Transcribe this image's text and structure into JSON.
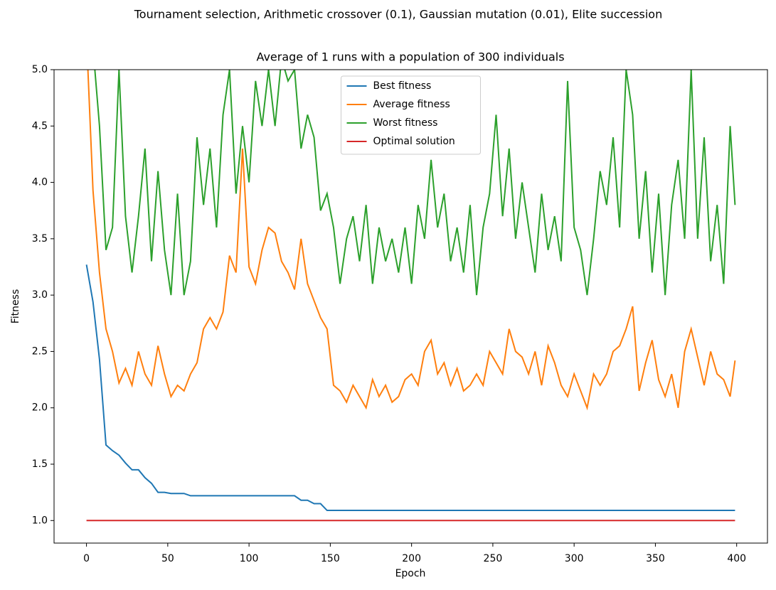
{
  "chart_data": {
    "type": "line",
    "title": "Tournament selection, Arithmetic crossover (0.1), Gaussian mutation (0.01), Elite succession",
    "subtitle": "Average of 1 runs with a population of 300 individuals",
    "x_label": "Epoch",
    "y_label": "Fitness",
    "x": [
      0,
      4,
      8,
      12,
      16,
      20,
      24,
      28,
      32,
      36,
      40,
      44,
      48,
      52,
      56,
      60,
      64,
      68,
      72,
      76,
      80,
      84,
      88,
      92,
      96,
      100,
      104,
      108,
      112,
      116,
      120,
      124,
      128,
      132,
      136,
      140,
      144,
      148,
      152,
      156,
      160,
      164,
      168,
      172,
      176,
      180,
      184,
      188,
      192,
      196,
      200,
      204,
      208,
      212,
      216,
      220,
      224,
      228,
      232,
      236,
      240,
      244,
      248,
      252,
      256,
      260,
      264,
      268,
      272,
      276,
      280,
      284,
      288,
      292,
      296,
      300,
      304,
      308,
      312,
      316,
      320,
      324,
      328,
      332,
      336,
      340,
      344,
      348,
      352,
      356,
      360,
      364,
      368,
      372,
      376,
      380,
      384,
      388,
      392,
      396,
      399
    ],
    "series": [
      {
        "name": "Best fitness",
        "color": "#1f77b4",
        "values": [
          3.27,
          2.94,
          2.43,
          1.67,
          1.62,
          1.58,
          1.51,
          1.45,
          1.45,
          1.38,
          1.33,
          1.25,
          1.25,
          1.24,
          1.24,
          1.24,
          1.22,
          1.22,
          1.22,
          1.22,
          1.22,
          1.22,
          1.22,
          1.22,
          1.22,
          1.22,
          1.22,
          1.22,
          1.22,
          1.22,
          1.22,
          1.22,
          1.22,
          1.18,
          1.18,
          1.15,
          1.15,
          1.09,
          1.09,
          1.09,
          1.09,
          1.09,
          1.09,
          1.09,
          1.09,
          1.09,
          1.09,
          1.09,
          1.09,
          1.09,
          1.09,
          1.09,
          1.09,
          1.09,
          1.09,
          1.09,
          1.09,
          1.09,
          1.09,
          1.09,
          1.09,
          1.09,
          1.09,
          1.09,
          1.09,
          1.09,
          1.09,
          1.09,
          1.09,
          1.09,
          1.09,
          1.09,
          1.09,
          1.09,
          1.09,
          1.09,
          1.09,
          1.09,
          1.09,
          1.09,
          1.09,
          1.09,
          1.09,
          1.09,
          1.09,
          1.09,
          1.09,
          1.09,
          1.09,
          1.09,
          1.09,
          1.09,
          1.09,
          1.09,
          1.09,
          1.09,
          1.09,
          1.09,
          1.09,
          1.09,
          1.09
        ]
      },
      {
        "name": "Average fitness",
        "color": "#ff7f0e",
        "values": [
          5.3,
          3.93,
          3.2,
          2.7,
          2.5,
          2.22,
          2.35,
          2.2,
          2.5,
          2.3,
          2.2,
          2.55,
          2.3,
          2.1,
          2.2,
          2.15,
          2.3,
          2.4,
          2.7,
          2.8,
          2.7,
          2.85,
          3.35,
          3.2,
          4.3,
          3.25,
          3.1,
          3.4,
          3.6,
          3.55,
          3.3,
          3.2,
          3.05,
          3.5,
          3.1,
          2.95,
          2.8,
          2.7,
          2.2,
          2.15,
          2.05,
          2.2,
          2.1,
          2.0,
          2.25,
          2.1,
          2.2,
          2.05,
          2.1,
          2.25,
          2.3,
          2.2,
          2.5,
          2.6,
          2.3,
          2.4,
          2.2,
          2.35,
          2.15,
          2.2,
          2.3,
          2.2,
          2.5,
          2.4,
          2.3,
          2.7,
          2.5,
          2.45,
          2.3,
          2.5,
          2.2,
          2.55,
          2.4,
          2.2,
          2.1,
          2.3,
          2.15,
          2.0,
          2.3,
          2.2,
          2.3,
          2.5,
          2.55,
          2.7,
          2.9,
          2.15,
          2.4,
          2.6,
          2.25,
          2.1,
          2.3,
          2.0,
          2.5,
          2.7,
          2.45,
          2.2,
          2.5,
          2.3,
          2.25,
          2.1,
          2.42
        ]
      },
      {
        "name": "Worst fitness",
        "color": "#2ca02c",
        "values": [
          5.5,
          5.2,
          4.5,
          3.4,
          3.6,
          5.0,
          3.7,
          3.2,
          3.7,
          4.3,
          3.3,
          4.1,
          3.4,
          3.0,
          3.9,
          3.0,
          3.3,
          4.4,
          3.8,
          4.3,
          3.6,
          4.6,
          5.0,
          3.9,
          4.5,
          4.0,
          4.9,
          4.5,
          5.0,
          4.5,
          5.1,
          4.9,
          5.0,
          4.3,
          4.6,
          4.4,
          3.75,
          3.9,
          3.6,
          3.1,
          3.5,
          3.7,
          3.3,
          3.8,
          3.1,
          3.6,
          3.3,
          3.5,
          3.2,
          3.6,
          3.1,
          3.8,
          3.5,
          4.2,
          3.6,
          3.9,
          3.3,
          3.6,
          3.2,
          3.8,
          3.0,
          3.6,
          3.9,
          4.6,
          3.7,
          4.3,
          3.5,
          4.0,
          3.6,
          3.2,
          3.9,
          3.4,
          3.7,
          3.3,
          4.9,
          3.6,
          3.4,
          3.0,
          3.5,
          4.1,
          3.8,
          4.4,
          3.6,
          5.0,
          4.6,
          3.5,
          4.1,
          3.2,
          3.9,
          3.0,
          3.8,
          4.2,
          3.5,
          5.0,
          3.5,
          4.4,
          3.3,
          3.8,
          3.1,
          4.5,
          3.8
        ]
      },
      {
        "name": "Optimal solution",
        "color": "#d62728",
        "values": [
          1,
          1,
          1,
          1,
          1,
          1,
          1,
          1,
          1,
          1,
          1,
          1,
          1,
          1,
          1,
          1,
          1,
          1,
          1,
          1,
          1,
          1,
          1,
          1,
          1,
          1,
          1,
          1,
          1,
          1,
          1,
          1,
          1,
          1,
          1,
          1,
          1,
          1,
          1,
          1,
          1,
          1,
          1,
          1,
          1,
          1,
          1,
          1,
          1,
          1,
          1,
          1,
          1,
          1,
          1,
          1,
          1,
          1,
          1,
          1,
          1,
          1,
          1,
          1,
          1,
          1,
          1,
          1,
          1,
          1,
          1,
          1,
          1,
          1,
          1,
          1,
          1,
          1,
          1,
          1,
          1,
          1,
          1,
          1,
          1,
          1,
          1,
          1,
          1,
          1,
          1,
          1,
          1,
          1,
          1,
          1,
          1,
          1,
          1,
          1,
          1
        ]
      }
    ],
    "xlim": [
      -19.95,
      418.95
    ],
    "xticks": [
      0,
      50,
      100,
      150,
      200,
      250,
      300,
      350,
      400
    ],
    "ylim": [
      0.8,
      5.0
    ],
    "yticks": [
      {
        "value": 1,
        "label": "1.0"
      },
      {
        "value": 1.5,
        "label": "1.5"
      },
      {
        "value": 2,
        "label": "2.0"
      },
      {
        "value": 2.5,
        "label": "2.5"
      },
      {
        "value": 3,
        "label": "3.0"
      },
      {
        "value": 3.5,
        "label": "3.5"
      },
      {
        "value": 4,
        "label": "4.0"
      },
      {
        "value": 4.5,
        "label": "4.5"
      },
      {
        "value": 5,
        "label": "5.0"
      }
    ],
    "legend": "upper center",
    "grid": false
  }
}
